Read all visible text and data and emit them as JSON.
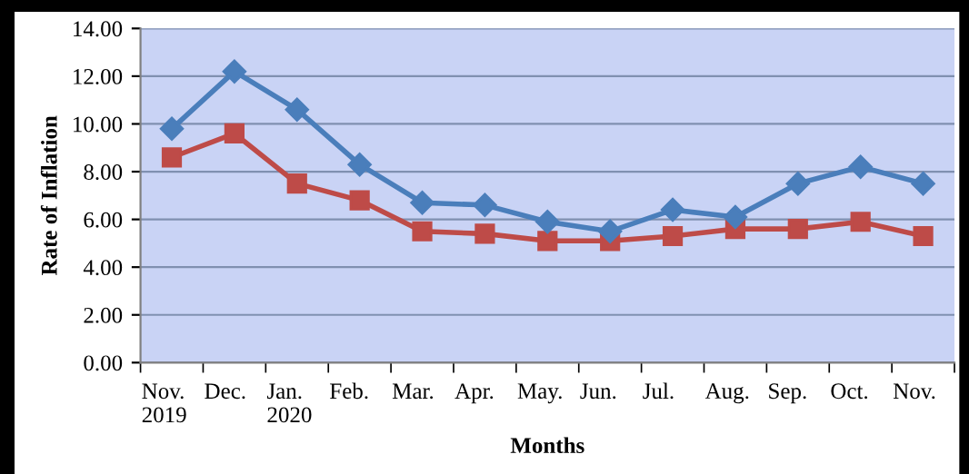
{
  "chart_data": {
    "type": "line",
    "xlabel": "Months",
    "ylabel": "Rate of Inflation",
    "categories": [
      "Nov.\n2019",
      "Dec.",
      "Jan.\n2020",
      "Feb.",
      "Mar.",
      "Apr.",
      "May.",
      "Jun.",
      "Jul.",
      "Aug.",
      "Sep.",
      "Oct.",
      "Nov."
    ],
    "series": [
      {
        "color": "#4a7ebb",
        "marker": "diamond",
        "values": [
          9.8,
          12.2,
          10.6,
          8.3,
          6.7,
          6.6,
          5.9,
          5.5,
          6.4,
          6.1,
          7.5,
          8.2,
          7.5
        ]
      },
      {
        "color": "#be4b48",
        "marker": "square",
        "values": [
          8.6,
          9.6,
          7.5,
          6.8,
          5.5,
          5.4,
          5.1,
          5.1,
          5.3,
          5.6,
          5.6,
          5.9,
          5.3
        ]
      }
    ],
    "ylim": [
      0,
      14
    ],
    "yticks": [
      {
        "value": 0,
        "label": "0.00"
      },
      {
        "value": 2,
        "label": "2.00"
      },
      {
        "value": 4,
        "label": "4.00"
      },
      {
        "value": 6,
        "label": "6.00"
      },
      {
        "value": 8,
        "label": "8.00"
      },
      {
        "value": 10,
        "label": "10.00"
      },
      {
        "value": 12,
        "label": "12.00"
      },
      {
        "value": 14,
        "label": "14.00"
      }
    ],
    "grid": "y",
    "legend": false,
    "line_style": "solid"
  }
}
